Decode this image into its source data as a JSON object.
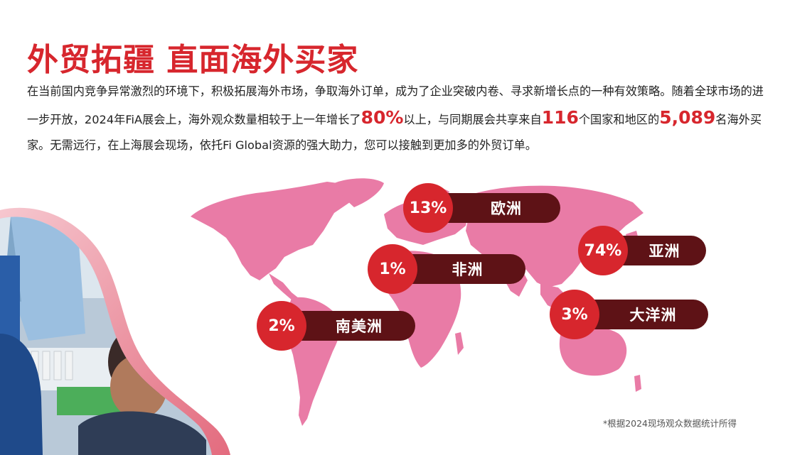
{
  "title": "外贸拓疆 直面海外买家",
  "paragraph": {
    "p1": "在当前国内竞争异常激烈的环境下，积极拓展海外市场，争取海外订单，成为了企业突破内卷、寻求新增长点的一种有效策略。随着全球市场的进一步开放，2024年FiA展会上，海外观众数量相较于上一年增长了",
    "h1": "80%",
    "p2": "以上，与同期展会共享来自",
    "h2": "116",
    "p3": "个国家和地区的",
    "h3": "5,089",
    "p4": "名海外买家。无需远行，在上海展会现场，依托Fi Global资源的强大助力，您可以接触到更加多的外贸订单。"
  },
  "regions": [
    {
      "percent": "13%",
      "name": "欧洲"
    },
    {
      "percent": "74%",
      "name": "亚洲"
    },
    {
      "percent": "1%",
      "name": "非洲"
    },
    {
      "percent": "3%",
      "name": "大洋洲"
    },
    {
      "percent": "2%",
      "name": "南美洲"
    }
  ],
  "footnote": "*根据2024现场观众数据统计所得",
  "colors": {
    "accent": "#d7262d",
    "pill": "#5e1216",
    "map": "#e97ba6"
  }
}
